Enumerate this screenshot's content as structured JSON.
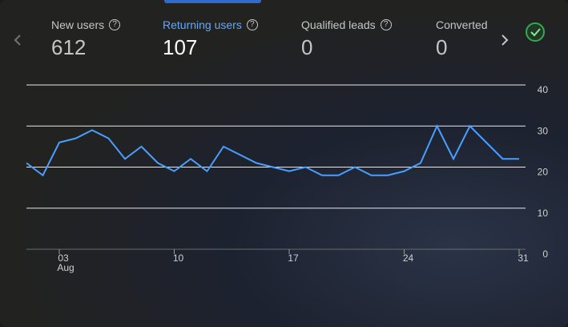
{
  "tabs": [
    {
      "label": "New users",
      "value": 612
    },
    {
      "label": "Returning users",
      "value": 107
    },
    {
      "label": "Qualified leads",
      "value": 0
    },
    {
      "label": "Converted",
      "value": 0
    }
  ],
  "chart_data": {
    "type": "line",
    "categories": [
      null,
      null,
      "03",
      null,
      null,
      null,
      null,
      null,
      null,
      "10",
      null,
      null,
      null,
      null,
      null,
      null,
      "17",
      null,
      null,
      null,
      null,
      null,
      null,
      "24",
      null,
      null,
      null,
      null,
      null,
      null,
      "31"
    ],
    "month_label": "Aug",
    "series": [
      {
        "name": "Returning users",
        "color": "#4a9eff",
        "values": [
          21,
          18,
          26,
          27,
          29,
          27,
          22,
          25,
          21,
          19,
          22,
          19,
          25,
          23,
          21,
          20,
          19,
          20,
          18,
          18,
          20,
          18,
          18,
          19,
          21,
          30,
          22,
          30,
          26,
          22,
          22
        ]
      }
    ],
    "ylim": [
      0,
      40
    ],
    "yticks": [
      0,
      10,
      20,
      30,
      40
    ],
    "grid": true
  }
}
